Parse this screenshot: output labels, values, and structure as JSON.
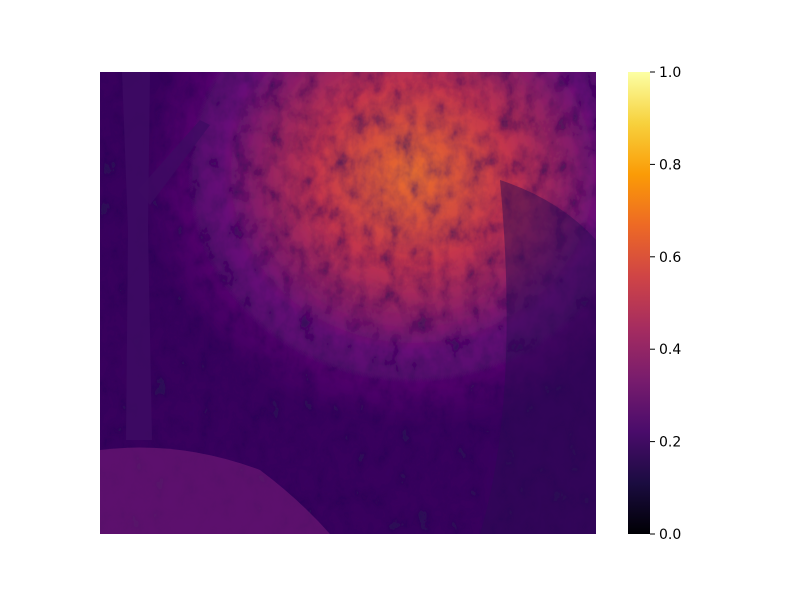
{
  "chart_data": {
    "type": "heatmap",
    "title": "",
    "xlabel": "",
    "ylabel": "",
    "axes_visible": false,
    "image_description_colormap": "inferno",
    "colormap_stops": [
      "#000004",
      "#1b0c41",
      "#4a0c6b",
      "#781c6d",
      "#a52c60",
      "#cf4446",
      "#ed6925",
      "#fb9b06",
      "#f7d13d",
      "#fcffa4"
    ],
    "colorbar": {
      "position": "right",
      "vmin": 0.0,
      "vmax": 1.0,
      "ticks": [
        0.0,
        0.2,
        0.4,
        0.6,
        0.8,
        1.0
      ],
      "tick_labels": [
        "0.0",
        "0.2",
        "0.4",
        "0.6",
        "0.8",
        "1.0"
      ]
    }
  }
}
